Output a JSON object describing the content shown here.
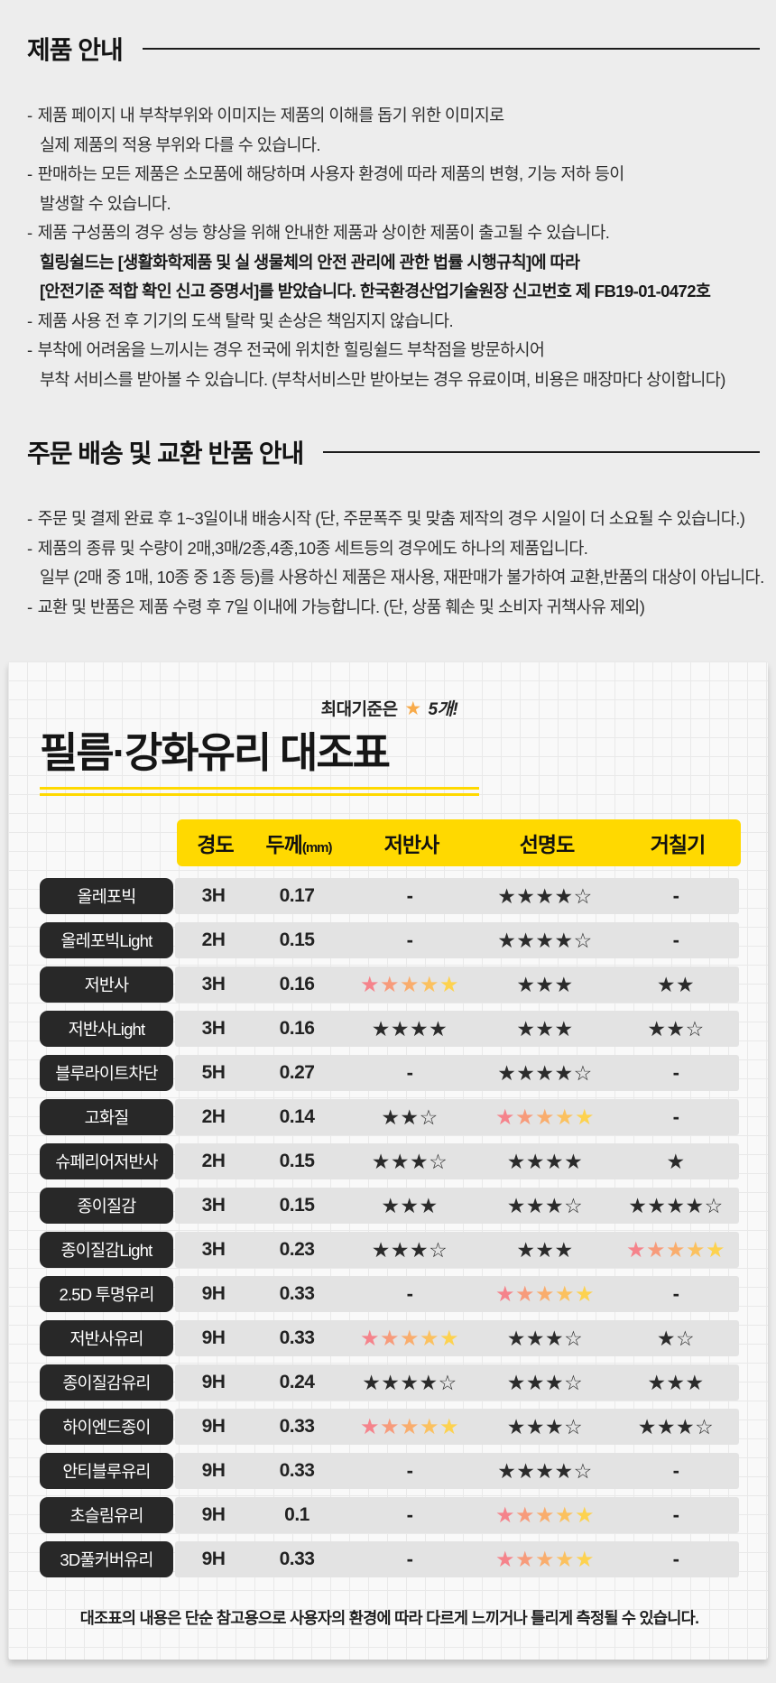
{
  "product_section": {
    "title": "제품 안내",
    "lines": [
      {
        "bullet": true,
        "bold": false,
        "text": "제품 페이지 내 부착부위와 이미지는 제품의 이해를 돕기 위한 이미지로"
      },
      {
        "bullet": false,
        "bold": false,
        "text": "실제 제품의 적용 부위와 다를 수 있습니다."
      },
      {
        "bullet": true,
        "bold": false,
        "text": "판매하는 모든 제품은 소모품에 해당하며 사용자 환경에 따라 제품의 변형, 기능 저하 등이"
      },
      {
        "bullet": false,
        "bold": false,
        "text": "발생할 수 있습니다."
      },
      {
        "bullet": true,
        "bold": false,
        "text": "제품 구성품의 경우 성능 향상을 위해 안내한 제품과 상이한 제품이 출고될 수 있습니다."
      },
      {
        "bullet": false,
        "bold": true,
        "text": "힐링쉴드는 [생활화학제품 및 실 생물체의 안전 관리에 관한 법률 시행규칙]에 따라"
      },
      {
        "bullet": false,
        "bold": true,
        "text": "[안전기준 적합 확인 신고 증명서]를 받았습니다. 한국환경산업기술원장 신고번호 제 FB19-01-0472호"
      },
      {
        "bullet": true,
        "bold": false,
        "text": "제품 사용 전 후 기기의 도색 탈락 및 손상은 책임지지 않습니다."
      },
      {
        "bullet": true,
        "bold": false,
        "text": "부착에 어려움을 느끼시는 경우 전국에 위치한 힐링쉴드 부착점을 방문하시어"
      },
      {
        "bullet": false,
        "bold": false,
        "text": "부착 서비스를 받아볼 수 있습니다. (부착서비스만 받아보는 경우 유료이며, 비용은 매장마다 상이합니다)"
      }
    ]
  },
  "order_section": {
    "title": "주문 배송 및 교환 반품 안내",
    "lines": [
      {
        "bullet": true,
        "bold": false,
        "text": "주문 및 결제 완료 후 1~3일이내 배송시작 (단, 주문폭주 및 맞춤 제작의 경우 시일이 더 소요될 수 있습니다.)"
      },
      {
        "bullet": true,
        "bold": false,
        "text": "제품의 종류 및 수량이 2매,3매/2종,4종,10종 세트등의 경우에도 하나의 제품입니다."
      },
      {
        "bullet": false,
        "bold": false,
        "text": "일부 (2매 중 1매, 10종 중 1종 등)를 사용하신 제품은 재사용, 재판매가 불가하여 교환,반품의 대상이 아닙니다."
      },
      {
        "bullet": true,
        "bold": false,
        "text": "교환 및 반품은 제품 수령 후 7일 이내에 가능합니다. (단, 상품 훼손 및 소비자 귀책사유 제외)"
      }
    ]
  },
  "card": {
    "badge": {
      "prefix": "최대기준은",
      "star": "★",
      "suffix": "5개!"
    },
    "title": "필름·강화유리 대조표",
    "columns": [
      {
        "label": "경도",
        "suffix": ""
      },
      {
        "label": "두께",
        "suffix": "(mm)"
      },
      {
        "label": "저반사",
        "suffix": ""
      },
      {
        "label": "선명도",
        "suffix": ""
      },
      {
        "label": "거칠기",
        "suffix": ""
      }
    ],
    "rows": [
      {
        "name": "올레포빅",
        "hardness": "3H",
        "thickness": "0.17",
        "reflection": "-",
        "clarity": "b4o1",
        "roughness": "-"
      },
      {
        "name": "올레포빅Light",
        "hardness": "2H",
        "thickness": "0.15",
        "reflection": "-",
        "clarity": "b4o1",
        "roughness": "-"
      },
      {
        "name": "저반사",
        "hardness": "3H",
        "thickness": "0.16",
        "reflection": "g5",
        "clarity": "b3",
        "roughness": "b2"
      },
      {
        "name": "저반사Light",
        "hardness": "3H",
        "thickness": "0.16",
        "reflection": "b4",
        "clarity": "b3",
        "roughness": "b2o1"
      },
      {
        "name": "블루라이트차단",
        "hardness": "5H",
        "thickness": "0.27",
        "reflection": "-",
        "clarity": "b4o1",
        "roughness": "-"
      },
      {
        "name": "고화질",
        "hardness": "2H",
        "thickness": "0.14",
        "reflection": "b2o1",
        "clarity": "g5",
        "roughness": "-"
      },
      {
        "name": "슈페리어저반사",
        "hardness": "2H",
        "thickness": "0.15",
        "reflection": "b3o1",
        "clarity": "b4",
        "roughness": "b1"
      },
      {
        "name": "종이질감",
        "hardness": "3H",
        "thickness": "0.15",
        "reflection": "b3",
        "clarity": "b3o1",
        "roughness": "b4o1"
      },
      {
        "name": "종이질감Light",
        "hardness": "3H",
        "thickness": "0.23",
        "reflection": "b3o1",
        "clarity": "b3",
        "roughness": "g5"
      },
      {
        "name": "2.5D 투명유리",
        "hardness": "9H",
        "thickness": "0.33",
        "reflection": "-",
        "clarity": "g5",
        "roughness": "-"
      },
      {
        "name": "저반사유리",
        "hardness": "9H",
        "thickness": "0.33",
        "reflection": "g5",
        "clarity": "b3o1",
        "roughness": "b1o1"
      },
      {
        "name": "종이질감유리",
        "hardness": "9H",
        "thickness": "0.24",
        "reflection": "b4o1",
        "clarity": "b3o1",
        "roughness": "b3"
      },
      {
        "name": "하이엔드종이",
        "hardness": "9H",
        "thickness": "0.33",
        "reflection": "g5",
        "clarity": "b3o1",
        "roughness": "b3o1"
      },
      {
        "name": "안티블루유리",
        "hardness": "9H",
        "thickness": "0.33",
        "reflection": "-",
        "clarity": "b4o1",
        "roughness": "-"
      },
      {
        "name": "초슬림유리",
        "hardness": "9H",
        "thickness": "0.1",
        "reflection": "-",
        "clarity": "g5",
        "roughness": "-"
      },
      {
        "name": "3D풀커버유리",
        "hardness": "9H",
        "thickness": "0.33",
        "reflection": "-",
        "clarity": "g5",
        "roughness": "-"
      }
    ],
    "footer": "대조표의 내용은 단순 참고용으로 사용자의 환경에 따라 다르게 느끼거나 틀리게 측정될 수 있습니다."
  },
  "colors": {
    "accent_yellow": "#ffd900",
    "label_black": "#282828",
    "row_gray": "#e3e3e3",
    "star_black": "#2b2b2b",
    "badge_star_orange": "#f8ab4b",
    "gradient_stars": [
      "#f5838b",
      "#f79b7b",
      "#f9ad6d",
      "#fbc15f",
      "#fdd24f"
    ]
  }
}
